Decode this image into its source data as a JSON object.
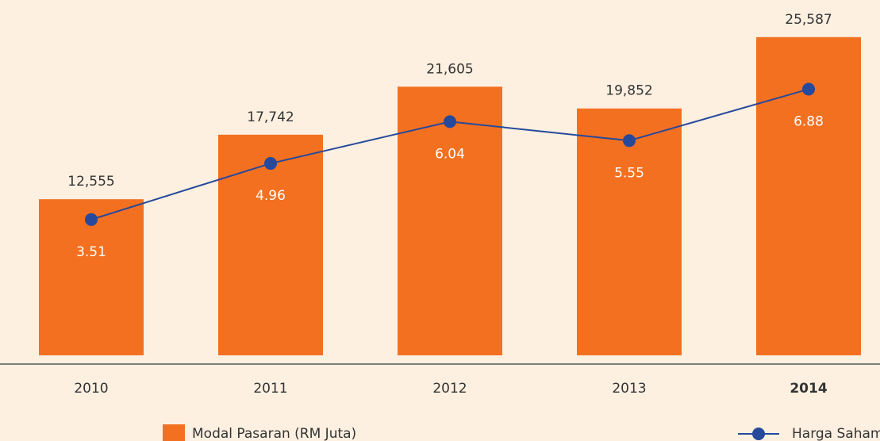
{
  "chart_data": {
    "type": "bar_line",
    "categories": [
      "2010",
      "2011",
      "2012",
      "2013",
      "2014"
    ],
    "series": [
      {
        "name": "Modal Pasaran (RM Juta)",
        "color": "#f37021",
        "values": [
          12555,
          17742,
          21605,
          19852,
          25587
        ],
        "value_labels": [
          "12,555",
          "17,742",
          "21,605",
          "19,852",
          "25,587"
        ]
      },
      {
        "name": "Harga Saham (RM)",
        "note": "1",
        "color": "#26499b",
        "axis": "y2",
        "values": [
          3.51,
          4.96,
          6.04,
          5.55,
          6.88
        ]
      }
    ],
    "ylim": [
      0,
      28000
    ],
    "y2lim": [
      0,
      9
    ]
  }
}
